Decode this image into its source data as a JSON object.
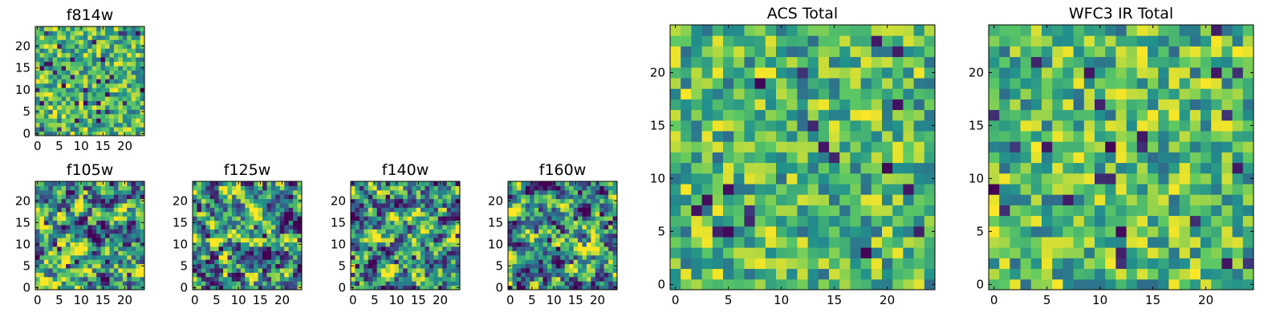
{
  "figure": {
    "colormap": "viridis",
    "colormap_stops": [
      "#440154",
      "#3b528b",
      "#21918c",
      "#5ec962",
      "#fde725"
    ],
    "panels": [
      {
        "id": "f814w",
        "title": "f814w",
        "size": 25,
        "xticks": [
          0,
          5,
          10,
          15,
          20
        ],
        "yticks": [
          0,
          5,
          10,
          15,
          20
        ],
        "seed": 8141,
        "smooth": 0,
        "dark_rate": 0.05
      },
      {
        "id": "f105w",
        "title": "f105w",
        "size": 25,
        "xticks": [
          0,
          5,
          10,
          15,
          20
        ],
        "yticks": [
          0,
          5,
          10,
          15,
          20
        ],
        "seed": 1051,
        "smooth": 1,
        "dark_rate": 0.04
      },
      {
        "id": "f125w",
        "title": "f125w",
        "size": 25,
        "xticks": [
          0,
          5,
          10,
          15,
          20
        ],
        "yticks": [
          0,
          5,
          10,
          15,
          20
        ],
        "seed": 1252,
        "smooth": 1,
        "dark_rate": 0.04
      },
      {
        "id": "f140w",
        "title": "f140w",
        "size": 25,
        "xticks": [
          0,
          5,
          10,
          15,
          20
        ],
        "yticks": [
          0,
          5,
          10,
          15,
          20
        ],
        "seed": 1403,
        "smooth": 1,
        "dark_rate": 0.05
      },
      {
        "id": "f160w",
        "title": "f160w",
        "size": 25,
        "xticks": [
          0,
          5,
          10,
          15,
          20
        ],
        "yticks": [
          0,
          5,
          10,
          15,
          20
        ],
        "seed": 1604,
        "smooth": 1,
        "dark_rate": 0.04
      },
      {
        "id": "acs-total",
        "title": "ACS Total",
        "size": 25,
        "xticks": [
          0,
          5,
          10,
          15,
          20
        ],
        "yticks": [
          0,
          5,
          10,
          15,
          20
        ],
        "seed": 7777,
        "smooth": 0,
        "dark_rate": 0.04
      },
      {
        "id": "wfc3-ir-total",
        "title": "WFC3 IR Total",
        "size": 25,
        "xticks": [
          0,
          5,
          10,
          15,
          20
        ],
        "yticks": [
          0,
          5,
          10,
          15,
          20
        ],
        "seed": 3333,
        "smooth": 0,
        "dark_rate": 0.035
      }
    ]
  },
  "chart_data": [
    {
      "type": "heatmap",
      "title": "f814w",
      "x_range": [
        0,
        24
      ],
      "y_range": [
        0,
        24
      ],
      "colormap": "viridis"
    },
    {
      "type": "heatmap",
      "title": "f105w",
      "x_range": [
        0,
        24
      ],
      "y_range": [
        0,
        24
      ],
      "colormap": "viridis"
    },
    {
      "type": "heatmap",
      "title": "f125w",
      "x_range": [
        0,
        24
      ],
      "y_range": [
        0,
        24
      ],
      "colormap": "viridis"
    },
    {
      "type": "heatmap",
      "title": "f140w",
      "x_range": [
        0,
        24
      ],
      "y_range": [
        0,
        24
      ],
      "colormap": "viridis"
    },
    {
      "type": "heatmap",
      "title": "f160w",
      "x_range": [
        0,
        24
      ],
      "y_range": [
        0,
        24
      ],
      "colormap": "viridis"
    },
    {
      "type": "heatmap",
      "title": "ACS Total",
      "x_range": [
        0,
        24
      ],
      "y_range": [
        0,
        24
      ],
      "colormap": "viridis"
    },
    {
      "type": "heatmap",
      "title": "WFC3 IR Total",
      "x_range": [
        0,
        24
      ],
      "y_range": [
        0,
        24
      ],
      "colormap": "viridis"
    }
  ]
}
